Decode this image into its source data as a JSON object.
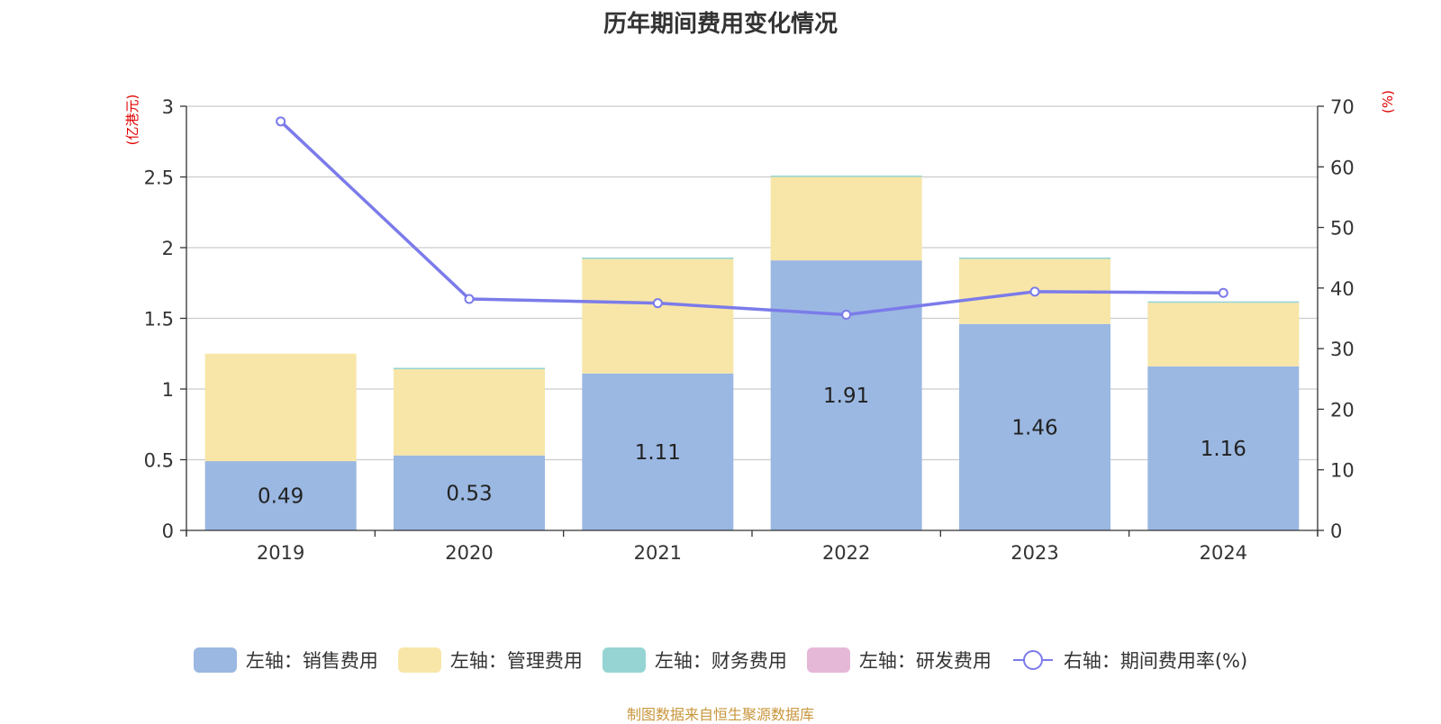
{
  "title": "历年期间费用变化情况",
  "footer": "制图数据来自恒生聚源数据库",
  "colors": {
    "sales": "#9bb8e2",
    "admin": "#f7e6a8",
    "finance": "#96d4d4",
    "rd": "#e6b8d8",
    "rate": "#7b7bea",
    "axis_unit": "#e00000",
    "footer": "#c8963c"
  },
  "legend": [
    {
      "label": "左轴：销售费用",
      "color": "#9bb8e2",
      "kind": "box"
    },
    {
      "label": "左轴：管理费用",
      "color": "#f7e6a8",
      "kind": "box"
    },
    {
      "label": "左轴：财务费用",
      "color": "#96d4d4",
      "kind": "box"
    },
    {
      "label": "左轴：研发费用",
      "color": "#e6b8d8",
      "kind": "box"
    },
    {
      "label": "右轴：期间费用率(%)",
      "color": "#7b7bea",
      "kind": "line"
    }
  ],
  "chart_data": {
    "type": "bar",
    "stacked": true,
    "title": "历年期间费用变化情况",
    "categories": [
      "2019",
      "2020",
      "2021",
      "2022",
      "2023",
      "2024"
    ],
    "left_axis": {
      "unit": "(亿港元)",
      "ylim": [
        0,
        3
      ],
      "ticks": [
        "0",
        "0.5",
        "1",
        "1.5",
        "2",
        "2.5",
        "3"
      ]
    },
    "right_axis": {
      "unit": "(%)",
      "ylim": [
        0,
        70
      ],
      "ticks": [
        "0",
        "10",
        "20",
        "30",
        "40",
        "50",
        "60",
        "70"
      ]
    },
    "grid": true,
    "legend_position": "bottom",
    "series": [
      {
        "name": "左轴：销售费用",
        "axis": "left",
        "values": [
          0.49,
          0.53,
          1.11,
          1.91,
          1.46,
          1.16
        ],
        "labels": [
          "0.49",
          "0.53",
          "1.11",
          "1.91",
          "1.46",
          "1.16"
        ]
      },
      {
        "name": "左轴：管理费用",
        "axis": "left",
        "values": [
          0.76,
          0.61,
          0.81,
          0.59,
          0.46,
          0.45
        ]
      },
      {
        "name": "左轴：财务费用",
        "axis": "left",
        "values": [
          0.0,
          0.01,
          0.01,
          0.01,
          0.01,
          0.01
        ]
      },
      {
        "name": "左轴：研发费用",
        "axis": "left",
        "values": [
          0,
          0,
          0,
          0,
          0,
          0
        ]
      },
      {
        "name": "右轴：期间费用率(%)",
        "axis": "right",
        "type": "line",
        "values": [
          67.5,
          38.2,
          37.5,
          35.6,
          39.4,
          39.2
        ]
      }
    ]
  }
}
